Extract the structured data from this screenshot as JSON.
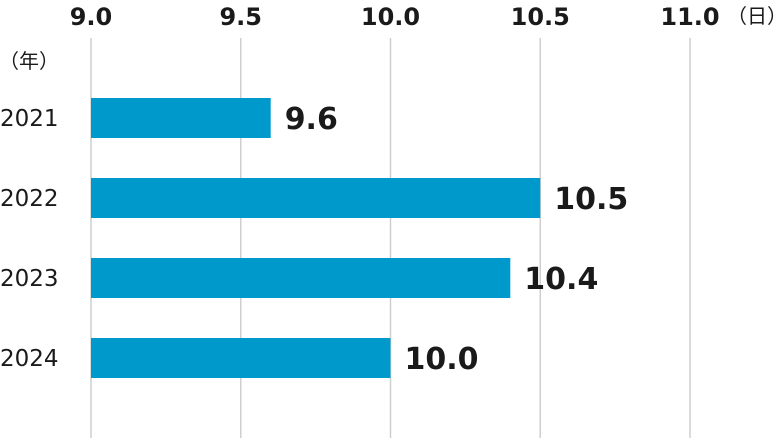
{
  "chart_data": {
    "type": "bar",
    "orientation": "horizontal",
    "categories": [
      "2021",
      "2022",
      "2023",
      "2024"
    ],
    "values": [
      9.6,
      10.5,
      10.4,
      10.0
    ],
    "value_labels": [
      "9.6",
      "10.5",
      "10.4",
      "10.0"
    ],
    "x_ticks": [
      "9.0",
      "9.5",
      "10.0",
      "10.5",
      "11.0"
    ],
    "x_tick_values": [
      9.0,
      9.5,
      10.0,
      10.5,
      11.0
    ],
    "xlim": [
      9.0,
      11.0
    ],
    "x_unit_label": "（日）",
    "y_unit_label": "（年）",
    "grid": true,
    "bar_color": "#0099cc"
  }
}
